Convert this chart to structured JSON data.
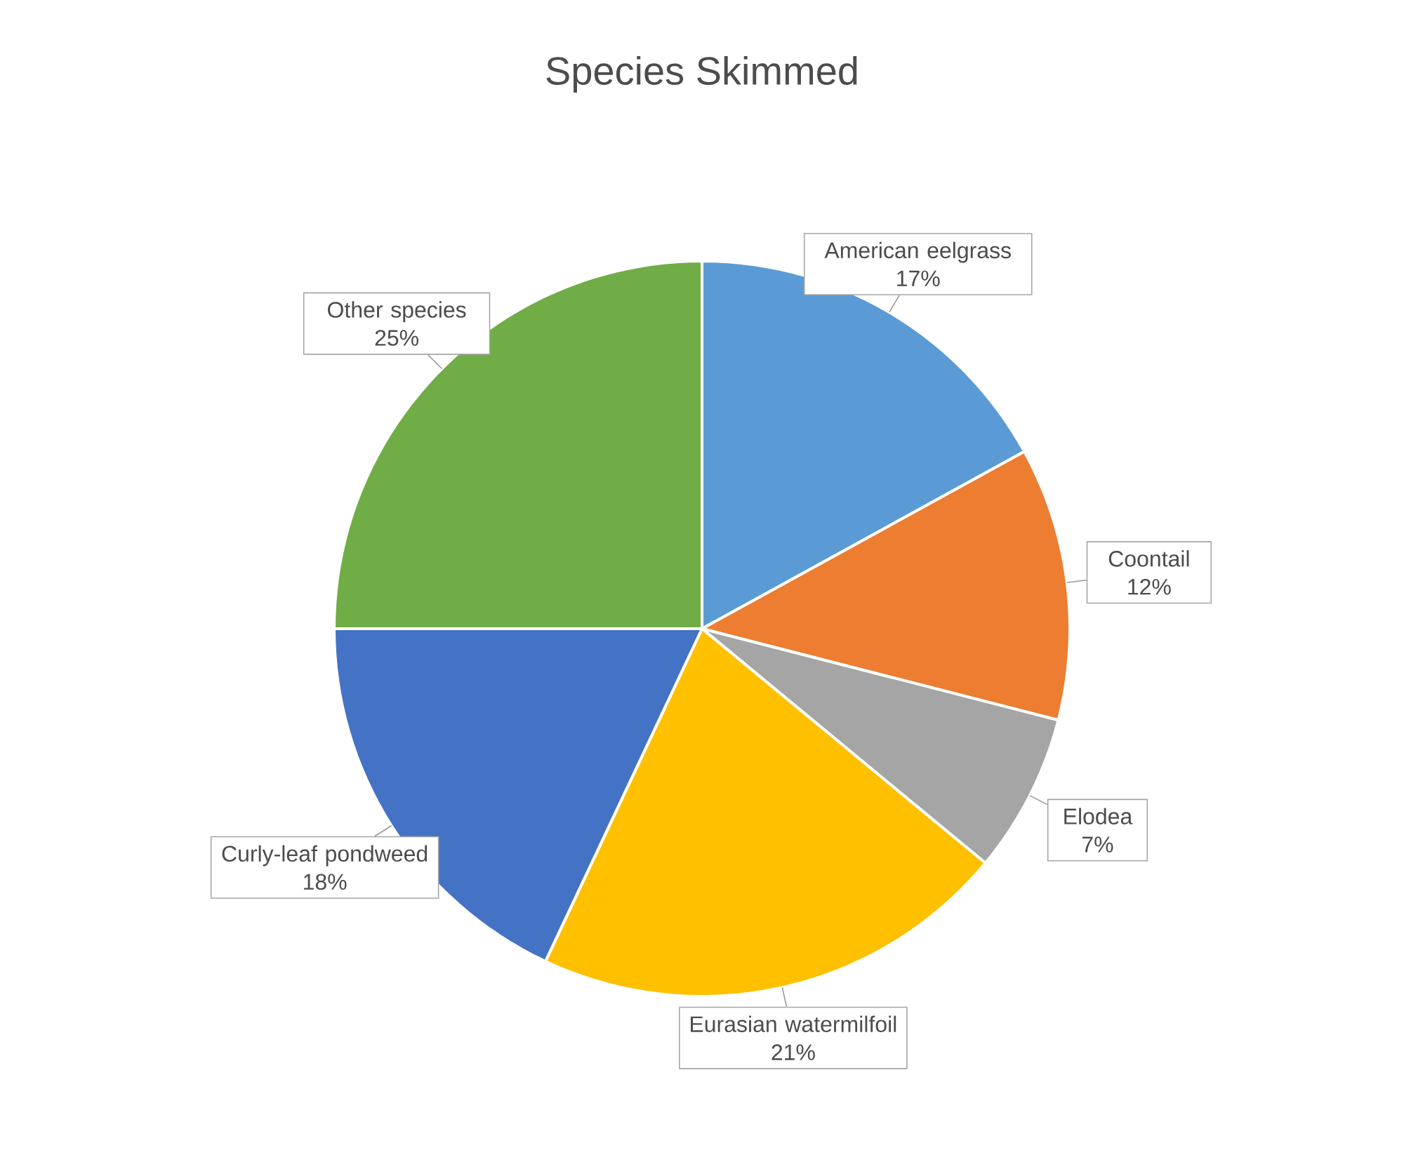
{
  "chart_data": {
    "type": "pie",
    "title": "Species Skimmed",
    "categories": [
      "American eelgrass",
      "Coontail",
      "Elodea",
      "Eurasian watermilfoil",
      "Curly-leaf pondweed",
      "Other species"
    ],
    "values": [
      17,
      12,
      7,
      21,
      18,
      25
    ],
    "value_labels": [
      "17%",
      "12%",
      "7%",
      "21%",
      "18%",
      "25%"
    ],
    "colors": [
      "#5b9bd5",
      "#ed7d31",
      "#a5a5a5",
      "#ffc000",
      "#4472c4",
      "#70ad47"
    ]
  }
}
